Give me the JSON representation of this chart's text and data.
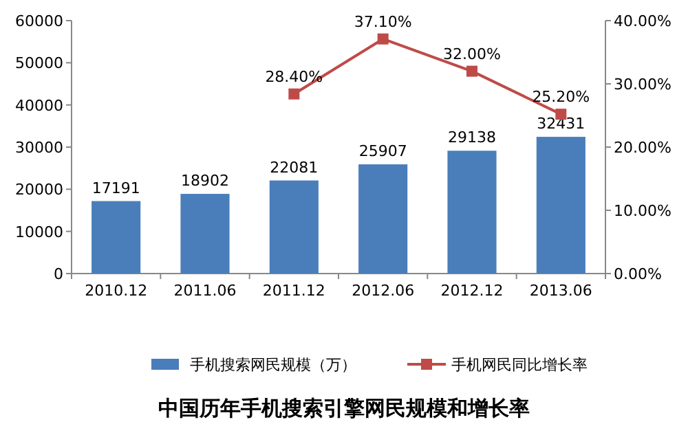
{
  "chart_data": {
    "type": "bar",
    "title": "中国历年手机搜索引擎网民规模和增长率",
    "categories": [
      "2010.12",
      "2011.06",
      "2011.12",
      "2012.06",
      "2012.12",
      "2013.06"
    ],
    "series": [
      {
        "name": "手机搜索网民规模（万）",
        "color": "#4a7ebb",
        "values": [
          17191,
          18902,
          22081,
          25907,
          29138,
          32431
        ],
        "value_labels": [
          "17191",
          "18902",
          "22081",
          "25907",
          "29138",
          "32431"
        ]
      },
      {
        "name": "手机网民同比增长率",
        "type": "line",
        "axis": "y2",
        "marker": "square",
        "color": "#be4b48",
        "values": [
          null,
          null,
          28.4,
          37.1,
          32,
          25.2
        ],
        "value_labels": [
          null,
          null,
          "28.40%",
          "37.10%",
          "32.00%",
          "25.20%"
        ]
      }
    ],
    "ylim": [
      0,
      60000
    ],
    "yticks": [
      0,
      10000,
      20000,
      30000,
      40000,
      50000,
      60000
    ],
    "y2lim": [
      0,
      40
    ],
    "y2ticks": [
      {
        "value": 0,
        "label": "0.00%"
      },
      {
        "value": 10,
        "label": "10.00%"
      },
      {
        "value": 20,
        "label": "20.00%"
      },
      {
        "value": 30,
        "label": "30.00%"
      },
      {
        "value": 40,
        "label": "40.00%"
      }
    ],
    "legend": "bottom"
  }
}
